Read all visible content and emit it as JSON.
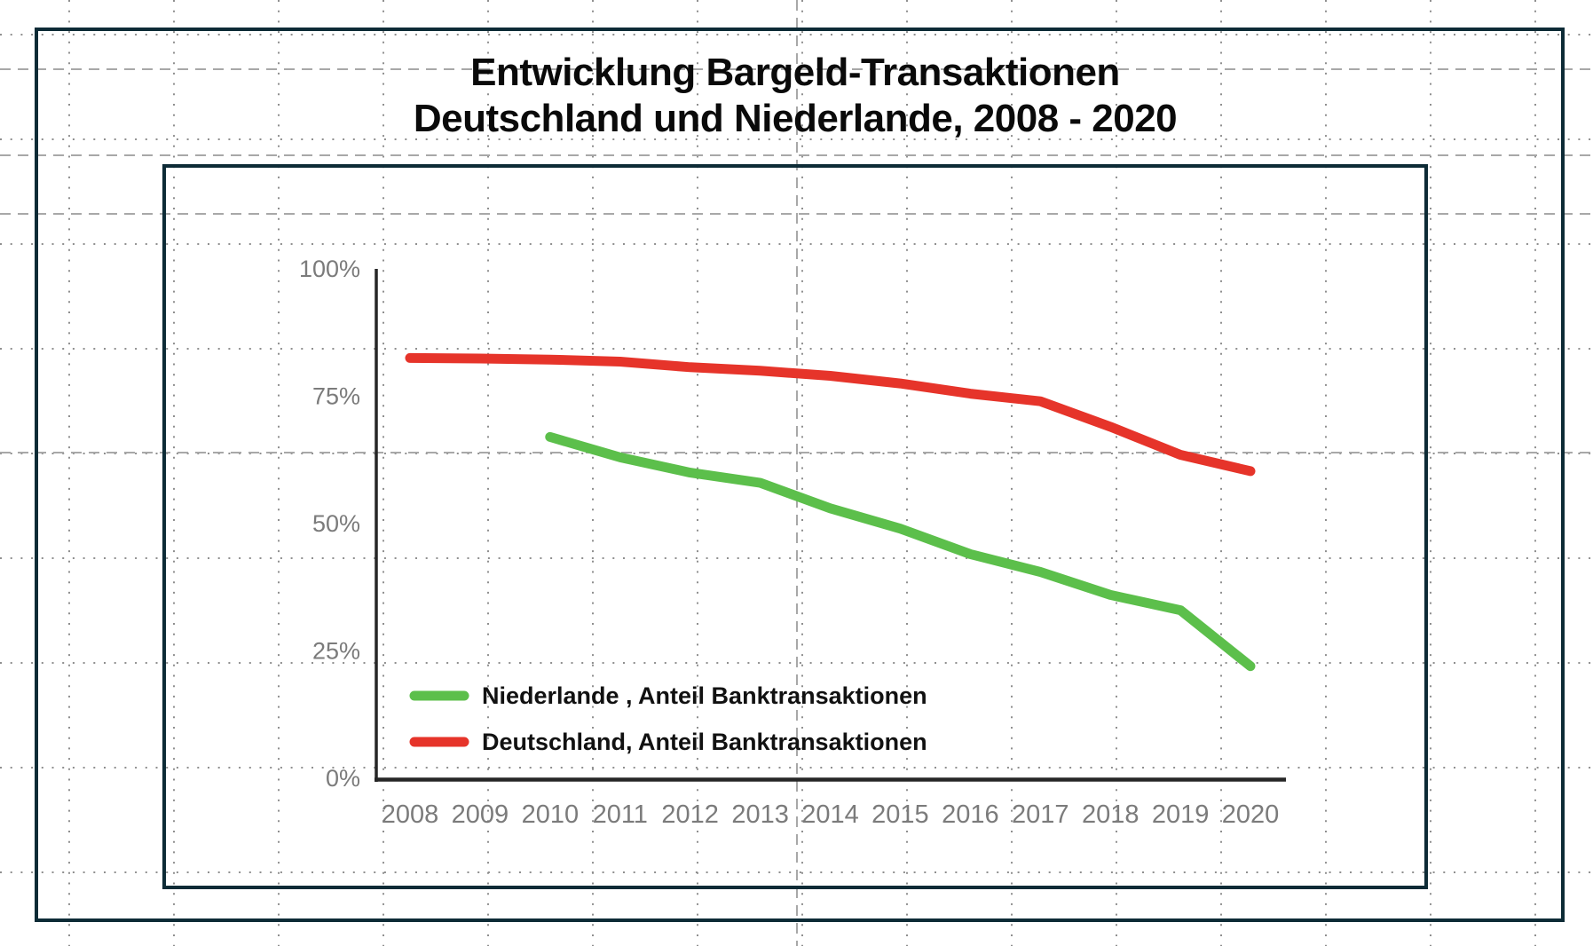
{
  "title": {
    "line1": "Entwicklung Bargeld-Transaktionen",
    "line2": "Deutschland und Niederlande, 2008 - 2020"
  },
  "chart_data": {
    "type": "line",
    "title": "Entwicklung Bargeld-Transaktionen Deutschland und Niederlande, 2008 - 2020",
    "x": [
      2008,
      2009,
      2010,
      2011,
      2012,
      2013,
      2014,
      2015,
      2016,
      2017,
      2018,
      2019,
      2020
    ],
    "x_tick_labels": [
      "2008",
      "2009",
      "2010",
      "2011",
      "2012",
      "2013",
      "2014",
      "2015",
      "2016",
      "2017",
      "2018",
      "2019",
      "2020"
    ],
    "y_ticks": [
      0,
      25,
      50,
      75,
      100
    ],
    "y_tick_labels": [
      "0%",
      "25%",
      "50%",
      "75%",
      "100%"
    ],
    "ylim": [
      0,
      100
    ],
    "xlabel": "",
    "ylabel": "",
    "grid": "off",
    "legend_position": "bottom-left-inside",
    "series": [
      {
        "name": "Deutschland, Anteil Banktransaktionen",
        "color": "#e6342a",
        "start_year": 2008,
        "values": [
          82.5,
          82.4,
          82.2,
          81.8,
          80.7,
          80.0,
          79.0,
          77.5,
          75.5,
          74.0,
          69.0,
          63.5,
          60.3
        ]
      },
      {
        "name": "Niederlande , Anteil Banktransaktionen",
        "color": "#5cbf4b",
        "start_year": 2010,
        "values": [
          67.0,
          63.0,
          60.0,
          58.0,
          53.0,
          49.0,
          44.0,
          40.5,
          36.0,
          33.0,
          22.0
        ]
      }
    ],
    "legend_order": [
      "Niederlande , Anteil Banktransaktionen",
      "Deutschland, Anteil Banktransaktionen"
    ]
  },
  "colors": {
    "border_rectangles": "#0d2b36",
    "axis_line": "#262626",
    "tick_label_gray": "#7b7b7b",
    "series_red": "#e6342a",
    "series_green": "#5cbf4b",
    "grid_dots": "#8f8f8f",
    "guide_dashes": "#a8a8a8",
    "title_text": "#0a0a0a"
  }
}
